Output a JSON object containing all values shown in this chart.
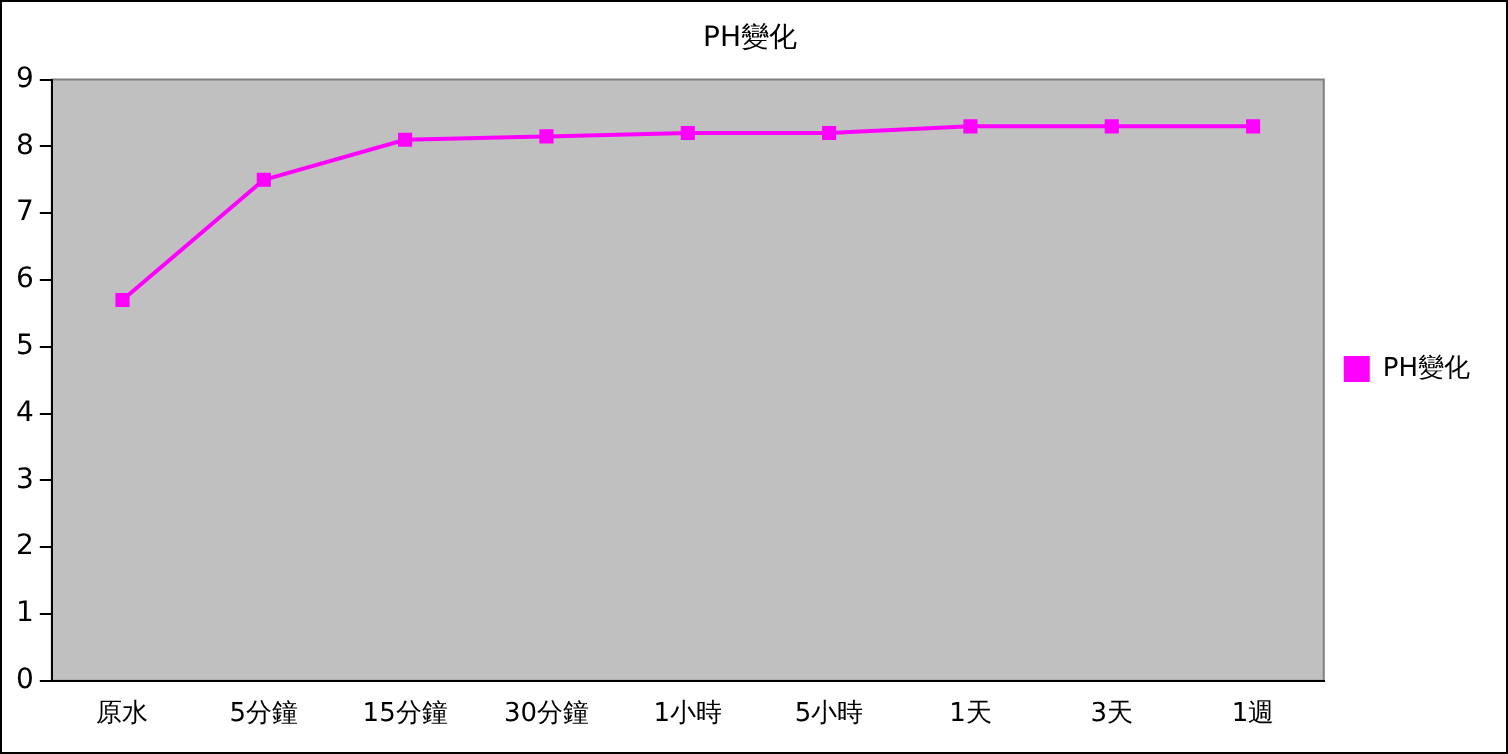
{
  "chart_data": {
    "type": "line",
    "title": "PH變化",
    "categories": [
      "原水",
      "5分鐘",
      "15分鐘",
      "30分鐘",
      "1小時",
      "5小時",
      "1天",
      "3天",
      "1週"
    ],
    "series": [
      {
        "name": "PH變化",
        "color": "#ff00ff",
        "values": [
          5.7,
          7.5,
          8.1,
          8.15,
          8.2,
          8.2,
          8.3,
          8.3,
          8.3
        ]
      }
    ],
    "ylim": [
      0,
      9
    ],
    "yticks": [
      0,
      1,
      2,
      3,
      4,
      5,
      6,
      7,
      8,
      9
    ],
    "grid": false,
    "legend": "right",
    "marker": "square",
    "line_style": "solid"
  }
}
